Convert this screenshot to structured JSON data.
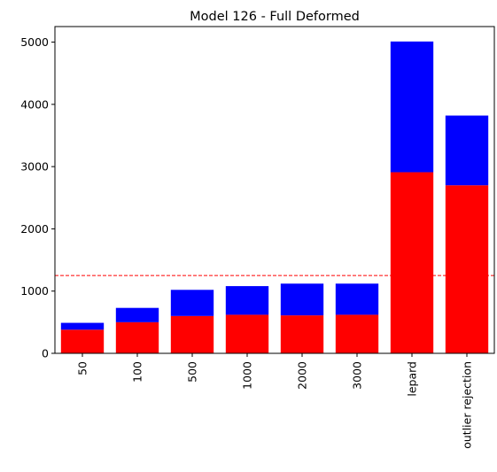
{
  "chart_data": {
    "type": "bar",
    "stacked": true,
    "title": "Model 126 - Full Deformed",
    "xlabel": "",
    "ylabel": "",
    "categories": [
      "50",
      "100",
      "500",
      "1000",
      "2000",
      "3000",
      "lepard",
      "outlier rejection"
    ],
    "series": [
      {
        "color": "#ff0000",
        "values": [
          380,
          500,
          600,
          620,
          610,
          620,
          2910,
          2700
        ]
      },
      {
        "color": "#0000ff",
        "values": [
          110,
          230,
          420,
          460,
          510,
          500,
          2100,
          1120
        ]
      }
    ],
    "reference_line": {
      "value": 1250,
      "color": "#ff0000",
      "style": "dashed"
    },
    "ylim": [
      0,
      5250
    ],
    "yticks": [
      0,
      1000,
      2000,
      3000,
      4000,
      5000
    ],
    "grid": false,
    "legend": "none"
  }
}
